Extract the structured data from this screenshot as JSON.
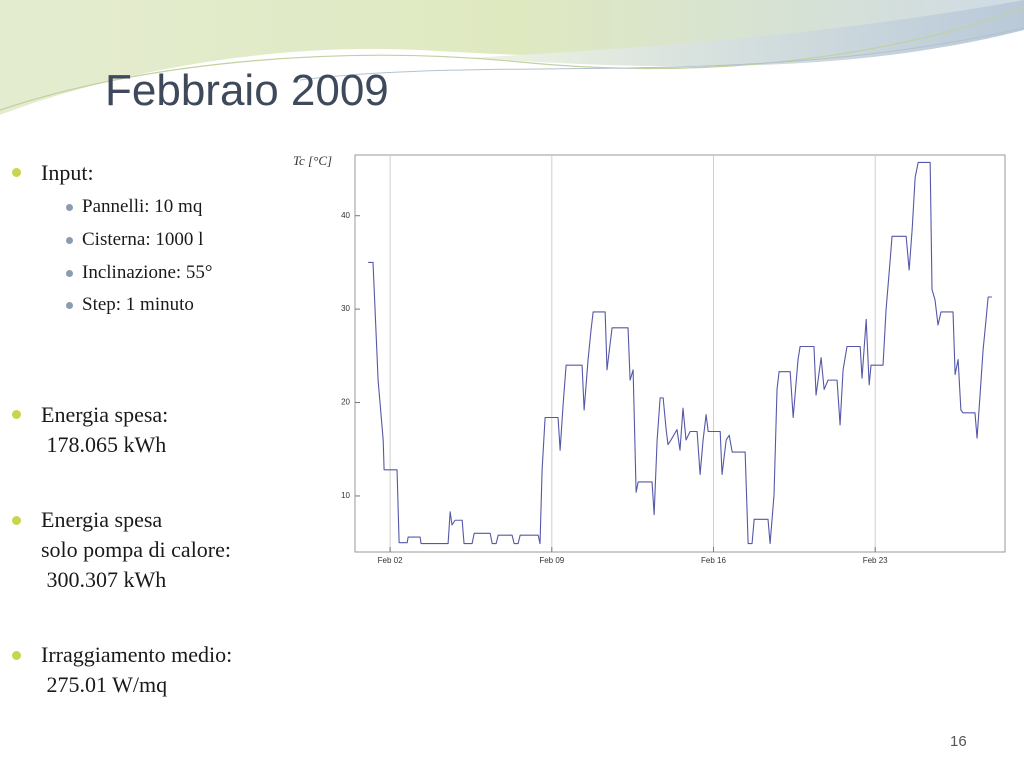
{
  "title": "Febbraio 2009",
  "bullets": [
    {
      "lines": [
        "Input:"
      ],
      "sub": [
        "Pannelli: 10 mq",
        "Cisterna: 1000 l",
        "Inclinazione: 55°",
        "Step: 1 minuto"
      ]
    },
    {
      "lines": [
        "Energia spesa:",
        " 178.065 kWh"
      ]
    },
    {
      "lines": [
        "Energia spesa",
        "solo pompa di calore:",
        " 300.307 kWh"
      ]
    },
    {
      "lines": [
        "Irraggiamento medio:",
        " 275.01 W/mq"
      ]
    }
  ],
  "page_number": "16",
  "chart_data": {
    "type": "line",
    "ylabel": "Tc [°C]",
    "color": "#5558a8",
    "x": [
      1.05,
      1.26,
      1.48,
      1.7,
      1.74,
      2.3,
      2.39,
      2.74,
      2.78,
      3.3,
      3.34,
      4.51,
      4.6,
      4.68,
      4.81,
      5.12,
      5.2,
      5.55,
      5.64,
      6.33,
      6.42,
      6.59,
      6.68,
      7.28,
      7.37,
      7.54,
      7.63,
      8.41,
      8.49,
      8.58,
      8.71,
      9.27,
      9.36,
      9.49,
      9.62,
      10.31,
      10.4,
      10.57,
      10.7,
      10.79,
      11.31,
      11.39,
      11.52,
      11.61,
      12.3,
      12.39,
      12.52,
      12.65,
      12.74,
      13.34,
      13.43,
      13.56,
      13.69,
      13.82,
      13.95,
      14.03,
      14.16,
      14.42,
      14.55,
      14.68,
      14.81,
      14.99,
      15.29,
      15.42,
      15.55,
      15.68,
      15.77,
      16.29,
      16.37,
      16.55,
      16.68,
      16.81,
      17.37,
      17.5,
      17.67,
      17.76,
      18.36,
      18.45,
      18.62,
      18.75,
      18.84,
      19.32,
      19.45,
      19.66,
      19.75,
      20.35,
      20.44,
      20.66,
      20.79,
      20.96,
      21.35,
      21.48,
      21.61,
      21.78,
      22.35,
      22.43,
      22.61,
      22.74,
      22.82,
      23.34,
      23.47,
      23.65,
      23.73,
      24.34,
      24.47,
      24.6,
      24.73,
      24.86,
      25.38,
      25.46,
      25.59,
      25.72,
      25.85,
      26.37,
      26.46,
      26.59,
      26.71,
      26.8,
      27.32,
      27.41,
      27.54,
      27.67,
      27.8,
      27.89,
      28.06
    ],
    "values": [
      35.0,
      35.0,
      22.4,
      16.0,
      12.8,
      12.8,
      5.0,
      5.0,
      5.6,
      5.6,
      4.9,
      4.9,
      8.3,
      6.9,
      7.4,
      7.4,
      4.9,
      4.9,
      6.0,
      6.0,
      4.9,
      4.9,
      5.8,
      5.8,
      4.9,
      4.9,
      5.8,
      5.8,
      4.9,
      12.8,
      18.4,
      18.4,
      14.9,
      19.8,
      24.0,
      24.0,
      19.2,
      24.6,
      27.8,
      29.7,
      29.7,
      23.5,
      26.2,
      28.0,
      28.0,
      22.4,
      23.5,
      10.4,
      11.5,
      11.5,
      8.0,
      16.0,
      20.5,
      20.5,
      17.1,
      15.5,
      16.0,
      17.1,
      14.9,
      19.4,
      16.0,
      16.9,
      16.9,
      12.3,
      16.0,
      18.7,
      16.9,
      16.9,
      12.3,
      16.0,
      16.5,
      14.7,
      14.7,
      4.9,
      4.9,
      7.5,
      7.5,
      4.9,
      10.1,
      21.4,
      23.3,
      23.3,
      18.4,
      24.6,
      26.0,
      26.0,
      20.8,
      24.8,
      21.4,
      22.4,
      22.4,
      17.6,
      23.5,
      26.0,
      26.0,
      22.6,
      28.9,
      21.9,
      24.0,
      24.0,
      29.9,
      35.3,
      37.8,
      37.8,
      34.2,
      38.5,
      44.1,
      45.7,
      45.7,
      32.1,
      31.0,
      28.3,
      29.7,
      29.7,
      23.0,
      24.6,
      19.2,
      18.9,
      18.9,
      16.2,
      20.8,
      25.6,
      28.9,
      31.3,
      31.3
    ],
    "xlim": [
      0.48,
      28.62
    ],
    "xticks": [
      {
        "value": 2,
        "label": "Feb 02"
      },
      {
        "value": 9,
        "label": "Feb 09"
      },
      {
        "value": 16,
        "label": "Feb 16"
      },
      {
        "value": 23,
        "label": "Feb 23"
      }
    ],
    "ylim": [
      4.0,
      46.5
    ],
    "yticks": [
      10,
      20,
      30,
      40
    ],
    "xgrid": true
  }
}
